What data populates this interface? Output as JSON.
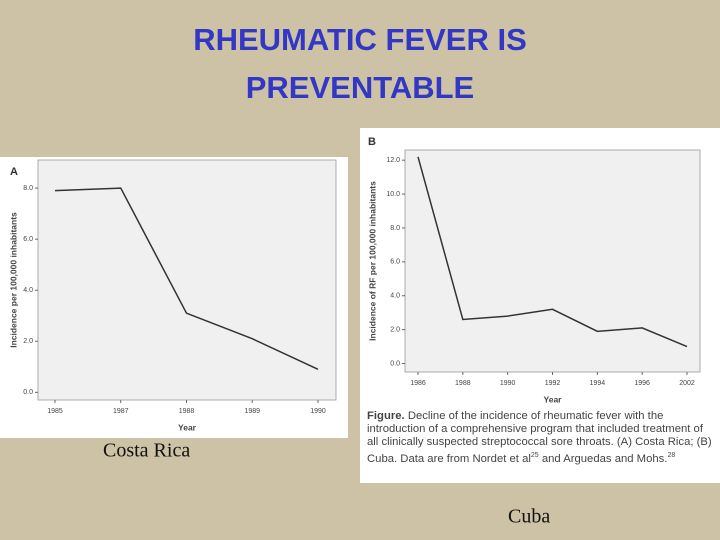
{
  "title_lines": [
    "RHEUMATIC FEVER IS",
    "PREVENTABLE"
  ],
  "chart_data": [
    {
      "type": "line",
      "panel": "A",
      "ylabel": "Incidence per 100,000 inhabitants",
      "xlabel": "Year",
      "categories": [
        "1985",
        "1987",
        "1988",
        "1989",
        "1990"
      ],
      "values": [
        7.9,
        8.0,
        3.1,
        2.1,
        0.9
      ],
      "color": "#333333",
      "ylim": [
        -0.3,
        9.1
      ],
      "yticks": [
        {
          "value": 0,
          "label": "0.0"
        },
        {
          "value": 2,
          "label": "2.0"
        },
        {
          "value": 4,
          "label": "4.0"
        },
        {
          "value": 6,
          "label": "6.0"
        },
        {
          "value": 8,
          "label": "8.0"
        }
      ]
    },
    {
      "type": "line",
      "panel": "B",
      "ylabel": "Incidence of RF per 100,000 inhabitants",
      "xlabel": "Year",
      "categories": [
        "1986",
        "1988",
        "1990",
        "1992",
        "1994",
        "1996",
        "2002"
      ],
      "values": [
        12.2,
        2.6,
        2.8,
        3.2,
        1.9,
        2.1,
        1.0
      ],
      "color": "#333333",
      "ylim": [
        -0.5,
        12.6
      ],
      "yticks": [
        {
          "value": 0,
          "label": "0.0"
        },
        {
          "value": 2,
          "label": "2.0"
        },
        {
          "value": 4,
          "label": "4.0"
        },
        {
          "value": 6,
          "label": "6.0"
        },
        {
          "value": 8,
          "label": "8.0"
        },
        {
          "value": 10,
          "label": "10.0"
        },
        {
          "value": 12,
          "label": "12.0"
        }
      ]
    }
  ],
  "figure_caption": {
    "label": "Figure.",
    "text": "Decline of the incidence of rheumatic fever with the introduction of a comprehensive program that included treatment of all clinically suspected streptococcal sore throats. (A) Costa Rica; (B) Cuba. Data are from Nordet et al",
    "ref1": "25",
    "text2": " and Arguedas and Mohs.",
    "ref2": "28"
  },
  "captions": [
    "Costa Rica",
    "Cuba"
  ]
}
